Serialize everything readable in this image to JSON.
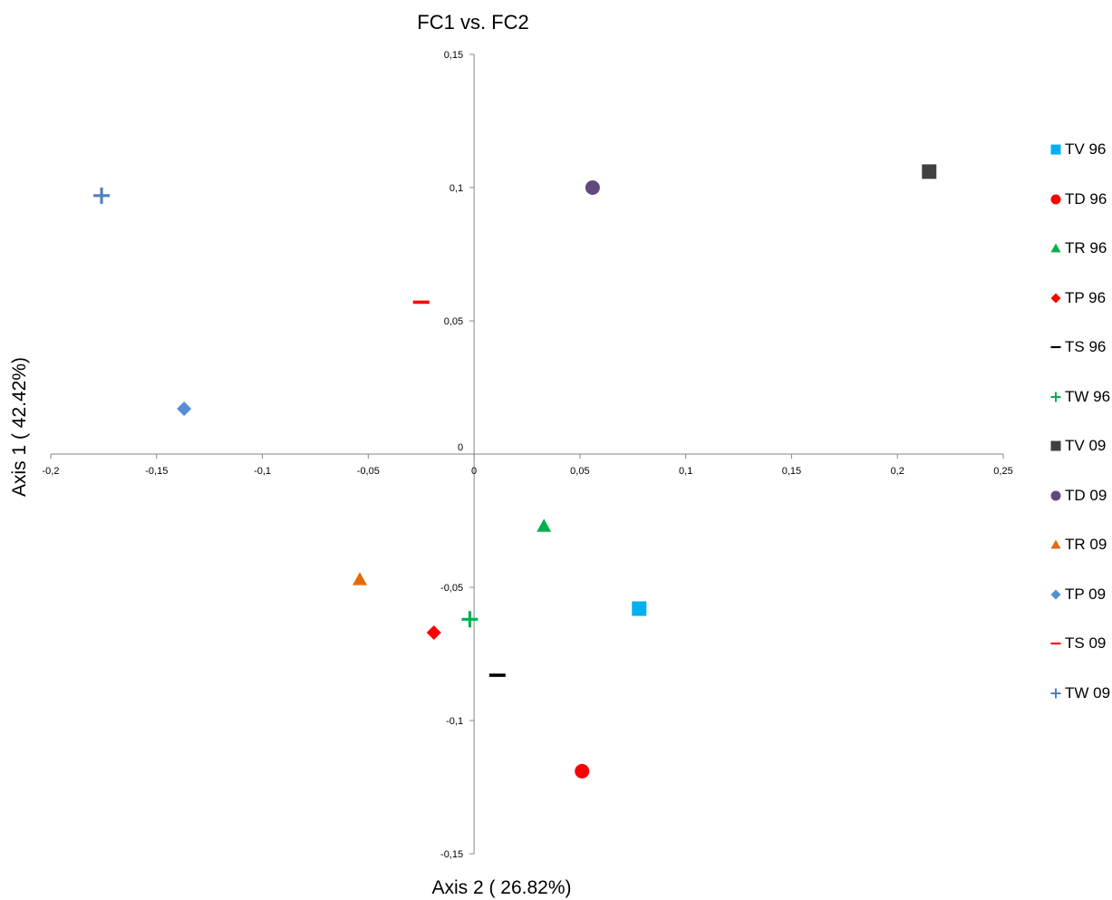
{
  "chart_data": {
    "type": "scatter",
    "title": "FC1 vs. FC2",
    "xlabel": "Axis 2 ( 26.82%)",
    "ylabel": "Axis 1 ( 42.42%)",
    "xlim": [
      -0.2,
      0.25
    ],
    "ylim": [
      -0.15,
      0.15
    ],
    "xticks": [
      "-0,2",
      "-0,15",
      "-0,1",
      "-0,05",
      "0",
      "0,05",
      "0,1",
      "0,15",
      "0,2",
      "0,25"
    ],
    "yticks": [
      "0,15",
      "0,1",
      "0,05",
      "0",
      "-0,05",
      "-0,1",
      "-0,15"
    ],
    "grid": false,
    "legend_position": "right",
    "series": [
      {
        "name": "TV 96",
        "marker": "square",
        "color": "#00b0f0",
        "x": 0.078,
        "y": -0.058
      },
      {
        "name": "TD 96",
        "marker": "circle",
        "color": "#ff0000",
        "x": 0.051,
        "y": -0.119
      },
      {
        "name": "TR 96",
        "marker": "triangle",
        "color": "#00b050",
        "x": 0.033,
        "y": -0.027
      },
      {
        "name": "TP 96",
        "marker": "diamond",
        "color": "#ff0000",
        "x": -0.019,
        "y": -0.067
      },
      {
        "name": "TS 96",
        "marker": "dash",
        "color": "#000000",
        "x": 0.011,
        "y": -0.083
      },
      {
        "name": "TW 96",
        "marker": "plus",
        "color": "#00b050",
        "x": -0.002,
        "y": -0.062
      },
      {
        "name": "TV 09",
        "marker": "square",
        "color": "#404040",
        "x": 0.215,
        "y": 0.106
      },
      {
        "name": "TD 09",
        "marker": "circle",
        "color": "#604a7b",
        "x": 0.056,
        "y": 0.1
      },
      {
        "name": "TR 09",
        "marker": "triangle",
        "color": "#e36c09",
        "x": -0.054,
        "y": -0.047
      },
      {
        "name": "TP 09",
        "marker": "diamond",
        "color": "#558ed5",
        "x": -0.137,
        "y": 0.017
      },
      {
        "name": "TS 09",
        "marker": "dash",
        "color": "#ff0000",
        "x": -0.025,
        "y": 0.057
      },
      {
        "name": "TW 09",
        "marker": "plus",
        "color": "#4f81bd",
        "x": -0.176,
        "y": 0.097
      }
    ]
  }
}
